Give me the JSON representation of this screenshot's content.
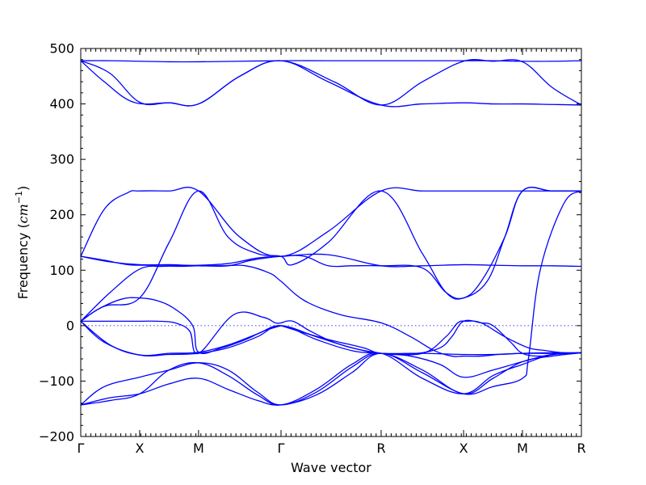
{
  "chart_data": {
    "type": "line",
    "xlabel": "Wave vector",
    "ylabel_prefix": "Frequency (",
    "ylabel_unit": "cm",
    "ylabel_exp": "−1",
    "ylabel_suffix": ")",
    "ylim": [
      -200,
      500
    ],
    "yticks": [
      500,
      400,
      300,
      200,
      100,
      0,
      -100,
      -200
    ],
    "yticklabels": [
      "500",
      "400",
      "300",
      "200",
      "100",
      "0",
      "−100",
      "−200"
    ],
    "xlim": [
      0,
      8.5
    ],
    "kpoints": [
      {
        "label": "Γ",
        "x": 0
      },
      {
        "label": "X",
        "x": 1
      },
      {
        "label": "M",
        "x": 2
      },
      {
        "label": "Γ",
        "x": 3.4
      },
      {
        "label": "R",
        "x": 5.1
      },
      {
        "label": "X",
        "x": 6.5
      },
      {
        "label": "M",
        "x": 7.5
      },
      {
        "label": "R",
        "x": 8.5
      }
    ],
    "zero_line": 0,
    "color": "#0000ff",
    "series": [
      {
        "x": [
          0,
          0.5,
          1,
          1.5,
          2,
          2.7,
          3.4,
          4.2,
          5.1,
          5.8,
          6.5,
          7,
          7.5,
          8,
          8.5
        ],
        "y": [
          478,
          478,
          477,
          476,
          476,
          477,
          478,
          478,
          478,
          478,
          478,
          478,
          477,
          477,
          478
        ]
      },
      {
        "x": [
          0,
          0.5,
          1,
          1.5,
          2,
          2.7,
          3.4,
          4.3,
          5.1,
          5.8,
          6.5,
          7,
          7.5,
          8,
          8.5
        ],
        "y": [
          478,
          455,
          403,
          402,
          400,
          450,
          478,
          440,
          398,
          440,
          477,
          477,
          476,
          430,
          398
        ]
      },
      {
        "x": [
          0,
          0.4,
          0.9,
          1.5,
          2,
          2.7,
          3.4,
          4.2,
          5.1,
          5.8,
          6.5,
          7,
          7.5,
          8,
          8.5
        ],
        "y": [
          478,
          440,
          403,
          402,
          400,
          450,
          478,
          440,
          398,
          400,
          402,
          400,
          400,
          399,
          398
        ]
      },
      {
        "x": [
          0,
          0.4,
          0.8,
          1,
          1.5,
          2,
          2.7,
          3.4,
          4.2,
          5.1,
          5.8,
          6.5,
          7,
          7.5,
          8,
          8.5
        ],
        "y": [
          125,
          210,
          240,
          243,
          243,
          243,
          160,
          125,
          170,
          243,
          243,
          243,
          243,
          243,
          243,
          243
        ]
      },
      {
        "x": [
          0,
          0.5,
          1,
          1.5,
          1.8,
          2,
          2.5,
          3,
          3.4,
          4.2,
          5.1,
          5.8,
          6.5,
          7,
          7.5,
          8,
          8.5
        ],
        "y": [
          125,
          115,
          110,
          110,
          109,
          109,
          112,
          122,
          125,
          128,
          108,
          108,
          110,
          109,
          108,
          108,
          107
        ]
      },
      {
        "x": [
          0,
          0.4,
          0.8,
          1.1,
          1.5,
          2,
          2.5,
          2.9,
          3.4,
          3.8,
          4.2,
          4.6,
          5.1,
          5.8,
          6.2,
          6.5,
          6.9,
          7.2,
          7.5,
          8,
          8.5
        ],
        "y": [
          125,
          118,
          110,
          109,
          109,
          108,
          108,
          118,
          125,
          125,
          108,
          108,
          108,
          104,
          60,
          50,
          80,
          160,
          243,
          243,
          243
        ]
      },
      {
        "x": [
          0,
          0.5,
          1,
          1.4,
          1.7,
          2,
          2.4,
          2.8,
          3.2,
          3.4,
          3.8,
          4.4,
          5.1,
          5.6,
          6,
          6.3,
          6.5,
          6.8,
          7.1,
          7.5,
          8,
          8.5
        ],
        "y": [
          8,
          60,
          102,
          107,
          107,
          108,
          108,
          108,
          95,
          80,
          45,
          20,
          5,
          -20,
          -45,
          -55,
          -55,
          -55,
          -52,
          -50,
          -49,
          -49
        ]
      },
      {
        "x": [
          0,
          0.4,
          1,
          1.5,
          2,
          2.5,
          3,
          3.4,
          3.6,
          4.2,
          5.1,
          5.8,
          6.2,
          6.5,
          6.8,
          7.2,
          7.5,
          8,
          8.5
        ],
        "y": [
          8,
          35,
          50,
          150,
          243,
          160,
          130,
          125,
          110,
          150,
          243,
          130,
          60,
          50,
          80,
          160,
          243,
          243,
          243
        ]
      },
      {
        "x": [
          0,
          0.5,
          1,
          1.3,
          1.6,
          1.85,
          2,
          2.6,
          3.1,
          3.3,
          3.4
        ],
        "y": [
          8,
          8,
          8,
          8,
          5,
          -10,
          -50,
          20,
          15,
          5,
          5
        ]
      },
      {
        "x": [
          3.4,
          3.6,
          3.9,
          4.3,
          4.8,
          5.1,
          5.8,
          6.2,
          6.4,
          6.55,
          6.8,
          7.2,
          7.6,
          7.9,
          8.2,
          8.5
        ],
        "y": [
          5,
          8,
          -10,
          -30,
          -45,
          -50,
          -50,
          -20,
          5,
          8,
          5,
          -20,
          -40,
          -45,
          -49,
          -49
        ]
      },
      {
        "x": [
          0,
          0.3,
          0.7,
          1,
          1.3,
          1.6,
          1.9,
          2,
          2.4,
          2.8,
          3.1,
          3.4
        ],
        "y": [
          8,
          30,
          48,
          50,
          45,
          30,
          0,
          -48,
          -40,
          -25,
          -10,
          0
        ]
      },
      {
        "x": [
          3.4,
          3.7,
          4.2,
          4.8,
          5.1,
          5.7,
          6.1,
          6.3,
          6.5,
          6.8,
          7,
          7.3,
          7.5,
          7.8,
          8.1,
          8.5
        ],
        "y": [
          0,
          -10,
          -25,
          -40,
          -50,
          -50,
          -40,
          -20,
          8,
          5,
          0,
          -30,
          -50,
          -55,
          -51,
          -49
        ]
      },
      {
        "x": [
          0,
          0.4,
          1,
          1.5,
          2,
          2.5,
          3,
          3.4,
          4,
          4.6,
          5.1,
          5.8,
          6.5,
          7,
          7.5,
          8,
          8.5
        ],
        "y": [
          8,
          -30,
          -53,
          -52,
          -50,
          -40,
          -20,
          0,
          -25,
          -45,
          -50,
          -50,
          -52,
          -52,
          -50,
          -50,
          -49
        ]
      },
      {
        "x": [
          0,
          0.5,
          1,
          1.5,
          2,
          2.5,
          3,
          3.4,
          4,
          4.6,
          5.1,
          5.6,
          6.1,
          6.5,
          7,
          7.5,
          8,
          8.5
        ],
        "y": [
          8,
          -35,
          -53,
          -50,
          -48,
          -35,
          -15,
          0,
          -20,
          -40,
          -50,
          -55,
          -70,
          -93,
          -80,
          -65,
          -52,
          -49
        ]
      },
      {
        "x": [
          0,
          0.4,
          1,
          1.5,
          2,
          2.5,
          3,
          3.4,
          4,
          4.6,
          5.1,
          5.8,
          6.5,
          7,
          7.5,
          8,
          8.5
        ],
        "y": [
          -143,
          -110,
          -93,
          -80,
          -67,
          -80,
          -120,
          -143,
          -120,
          -75,
          -50,
          -80,
          -123,
          -95,
          -65,
          -55,
          -49
        ]
      },
      {
        "x": [
          0,
          0.5,
          1,
          1.5,
          2,
          2.5,
          3,
          3.4,
          4,
          4.6,
          5.1,
          5.8,
          6.5,
          7,
          7.5,
          7.6,
          7.8,
          8.2,
          8.5
        ],
        "y": [
          -143,
          -130,
          -123,
          -105,
          -95,
          -115,
          -135,
          -143,
          -125,
          -85,
          -50,
          -85,
          -123,
          -110,
          -95,
          -60,
          100,
          220,
          243
        ]
      },
      {
        "x": [
          0,
          0.5,
          1,
          1.5,
          2,
          2.5,
          3,
          3.4,
          4,
          4.6,
          5.1,
          5.8,
          6.5,
          7,
          7.5,
          8,
          8.5
        ],
        "y": [
          -143,
          -135,
          -123,
          -80,
          -67,
          -90,
          -125,
          -143,
          -115,
          -70,
          -50,
          -95,
          -123,
          -90,
          -70,
          -52,
          -49
        ]
      }
    ]
  }
}
